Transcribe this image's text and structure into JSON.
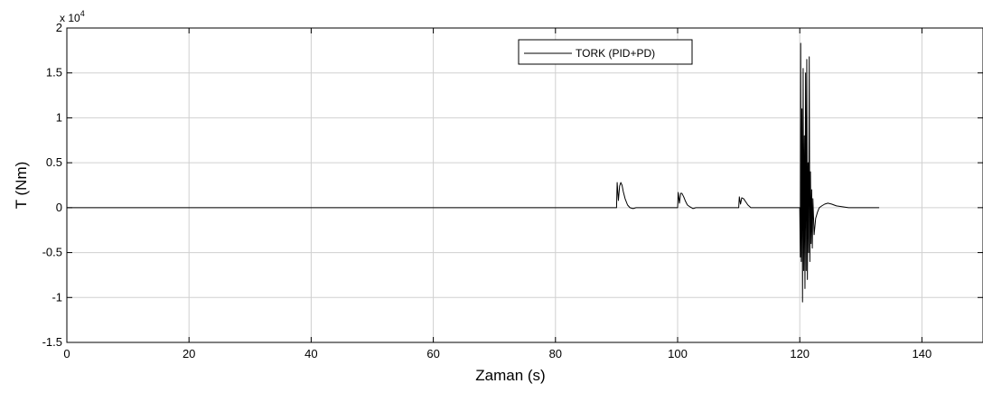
{
  "chart_data": {
    "type": "line",
    "title": "",
    "xlabel": "Zaman (s)",
    "ylabel": "T (Nm)",
    "y_exponent_label": "x 10",
    "y_exponent_power": "4",
    "xlim": [
      0,
      150
    ],
    "ylim": [
      -1.5,
      2
    ],
    "x_ticks": [
      0,
      20,
      40,
      60,
      80,
      100,
      120,
      140
    ],
    "x_tick_labels": [
      "0",
      "20",
      "40",
      "60",
      "80",
      "100",
      "120",
      "140"
    ],
    "y_ticks": [
      -1.5,
      -1,
      -0.5,
      0,
      0.5,
      1,
      1.5,
      2
    ],
    "y_tick_labels": [
      "-1.5",
      "-1",
      "-0.5",
      "0",
      "0.5",
      "1",
      "1.5",
      "2"
    ],
    "grid": true,
    "legend_position": "top-center",
    "colors": {
      "line": "#000000",
      "grid": "#d0d0d0",
      "background": "#ffffff"
    },
    "series": [
      {
        "name": "TORK (PID+PD)",
        "x": [
          0,
          90.0,
          90.1,
          90.3,
          90.5,
          90.7,
          90.9,
          91.1,
          91.4,
          91.8,
          92.2,
          92.7,
          93.2,
          100.0,
          100.1,
          100.3,
          100.5,
          100.7,
          101.0,
          101.3,
          101.6,
          102.0,
          102.5,
          103.0,
          110.0,
          110.1,
          110.3,
          110.5,
          110.8,
          111.1,
          111.5,
          112.0,
          112.5,
          120.0,
          120.1,
          120.15,
          120.25,
          120.35,
          120.45,
          120.55,
          120.65,
          120.75,
          120.85,
          120.95,
          121.05,
          121.15,
          121.25,
          121.35,
          121.45,
          121.55,
          121.65,
          121.75,
          121.85,
          121.95,
          122.05,
          122.15,
          122.35,
          122.6,
          122.9,
          123.2,
          123.6,
          124.1,
          124.6,
          125.2,
          126.0,
          127.0,
          128.0,
          129.0,
          130.0,
          131.5,
          133.0
        ],
        "y": [
          0,
          0,
          0.28,
          0.08,
          0.24,
          0.28,
          0.25,
          0.18,
          0.1,
          0.03,
          0.0,
          -0.01,
          0,
          0,
          0.17,
          0.05,
          0.16,
          0.16,
          0.12,
          0.07,
          0.03,
          0.01,
          -0.01,
          0,
          0,
          0.12,
          0.04,
          0.11,
          0.1,
          0.07,
          0.03,
          0.0,
          0,
          0,
          -0.55,
          1.83,
          -0.6,
          1.1,
          -1.05,
          1.55,
          -0.7,
          0.8,
          -0.9,
          1.5,
          -0.7,
          1.65,
          -0.8,
          0.5,
          -0.5,
          1.68,
          -0.6,
          0.4,
          -0.4,
          0.2,
          -0.45,
          0.1,
          -0.3,
          -0.12,
          -0.05,
          0.0,
          0.02,
          0.04,
          0.05,
          0.04,
          0.02,
          0.01,
          0.0,
          0.0,
          0.0,
          0.0,
          0
        ]
      }
    ]
  }
}
